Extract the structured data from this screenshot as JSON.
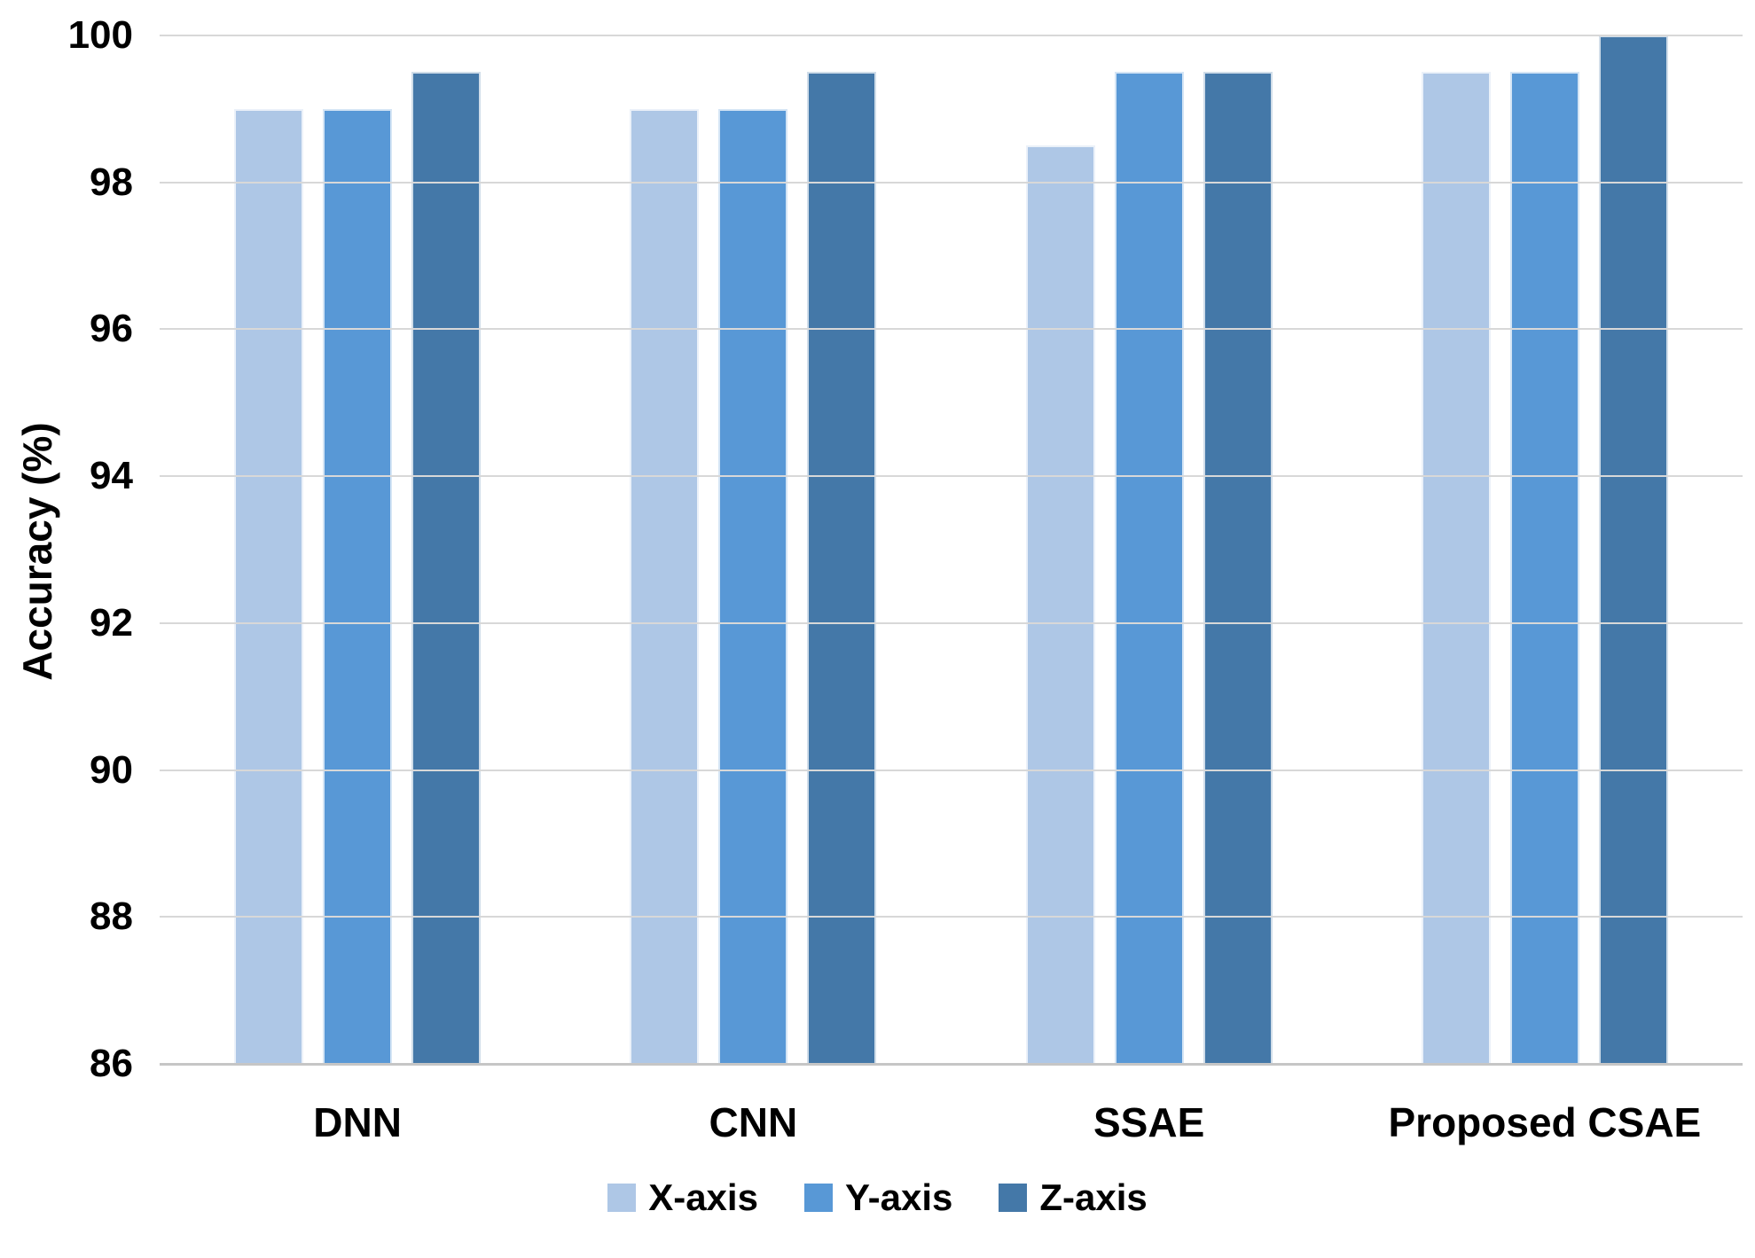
{
  "chart_data": {
    "type": "bar",
    "title": "",
    "xlabel": "",
    "ylabel": "Accuracy (%)",
    "ylim": [
      86,
      100
    ],
    "yticks": [
      100,
      98,
      96,
      94,
      92,
      90,
      88,
      86
    ],
    "grid": "horizontal",
    "legend_position": "bottom",
    "categories": [
      "DNN",
      "CNN",
      "SSAE",
      "Proposed CSAE"
    ],
    "series": [
      {
        "name": "X-axis",
        "color": "#AEC7E6",
        "values": [
          99.0,
          99.0,
          98.5,
          99.5
        ]
      },
      {
        "name": "Y-axis",
        "color": "#5898D6",
        "values": [
          99.0,
          99.0,
          99.5,
          99.5
        ]
      },
      {
        "name": "Z-axis",
        "color": "#4478A8",
        "values": [
          99.5,
          99.5,
          99.5,
          100.0
        ]
      }
    ],
    "colors": {
      "gridline": "#d8d8d8",
      "axis_line": "#c6c6c6",
      "text": "#000000",
      "background": "#ffffff"
    }
  }
}
